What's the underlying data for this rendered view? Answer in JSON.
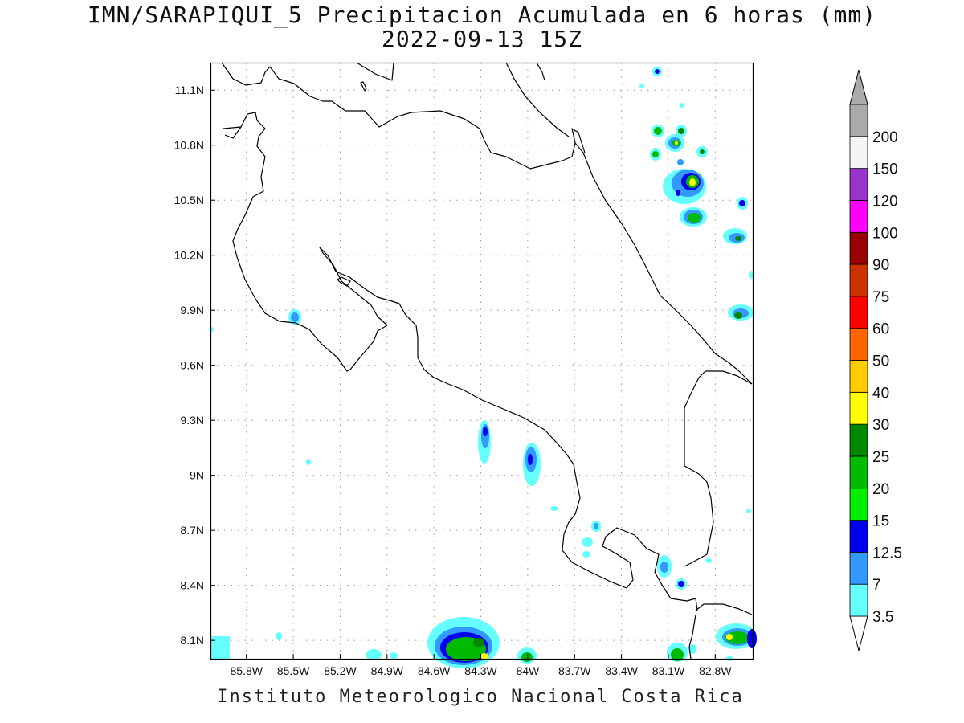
{
  "header": {
    "title_line1": "IMN/SARAPIQUI_5 Precipitacion Acumulada en 6 horas (mm)",
    "title_line2": "2022-09-13 15Z"
  },
  "footer": {
    "credit": "Instituto Meteorologico Nacional Costa Rica"
  },
  "map": {
    "lon_range": [
      -86.03,
      -82.56
    ],
    "lat_range": [
      8.0,
      11.25
    ],
    "x_ticks": [
      "85.8W",
      "85.5W",
      "85.2W",
      "84.9W",
      "84.6W",
      "84.3W",
      "84W",
      "83.7W",
      "83.4W",
      "83.1W",
      "82.8W"
    ],
    "x_tick_values": [
      -85.8,
      -85.5,
      -85.2,
      -84.9,
      -84.6,
      -84.3,
      -84.0,
      -83.7,
      -83.4,
      -83.1,
      -82.8
    ],
    "y_ticks": [
      "8.1N",
      "8.4N",
      "8.7N",
      "9N",
      "9.3N",
      "9.6N",
      "9.9N",
      "10.2N",
      "10.5N",
      "10.8N",
      "11.1N"
    ],
    "y_tick_values": [
      8.1,
      8.4,
      8.7,
      9.0,
      9.3,
      9.6,
      9.9,
      10.2,
      10.5,
      10.8,
      11.1
    ],
    "grid": true
  },
  "colorbar": {
    "labels": [
      "3.5",
      "7",
      "12.5",
      "15",
      "20",
      "25",
      "30",
      "40",
      "50",
      "60",
      "75",
      "90",
      "100",
      "120",
      "150",
      "200"
    ],
    "colors": [
      "#66ffff",
      "#3399ff",
      "#0000ee",
      "#00ee00",
      "#00bb00",
      "#008800",
      "#ffff00",
      "#ffcc00",
      "#ff6600",
      "#ff0000",
      "#cc3300",
      "#990000",
      "#ff00ff",
      "#9933cc",
      "#f5f5f5",
      "#aaaaaa"
    ],
    "top_arrow_color": "#aaaaaa",
    "bottom_arrow_color": "#ffffff"
  }
}
